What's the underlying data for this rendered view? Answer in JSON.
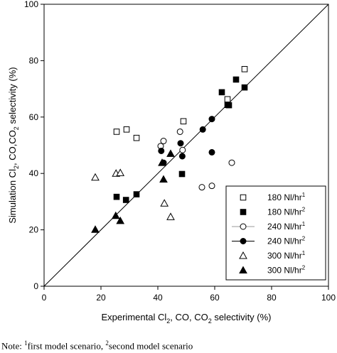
{
  "chart_data": {
    "type": "scatter",
    "xlim": [
      0,
      100
    ],
    "ylim": [
      0,
      100
    ],
    "xticks": [
      0,
      20,
      40,
      60,
      80,
      100
    ],
    "yticks": [
      0,
      20,
      40,
      60,
      80,
      100
    ],
    "xlabel": {
      "prefix": "Experimental Cl",
      "sub1": "2",
      "mid": ", CO, CO",
      "sub2": "2",
      "suffix": " selectivity (%)"
    },
    "ylabel": {
      "prefix": "Simulation Cl",
      "sub1": "2",
      "mid": ", CO,CO",
      "sub2": "2",
      "suffix": " selectivity (%)"
    },
    "parity_line": {
      "from": [
        0,
        0
      ],
      "to": [
        100,
        100
      ]
    },
    "legend_placement": "lower-right",
    "series": [
      {
        "name": "180 Nl/hr",
        "sup": "1",
        "marker": "square",
        "filled": false,
        "points": [
          [
            25.5,
            54.8
          ],
          [
            29,
            55.6
          ],
          [
            32.5,
            52.6
          ],
          [
            49,
            58.5
          ],
          [
            64.5,
            66.3
          ],
          [
            70.5,
            77
          ]
        ]
      },
      {
        "name": "180 Nl/hr",
        "sup": "2",
        "marker": "square",
        "filled": true,
        "points": [
          [
            25.5,
            31.7
          ],
          [
            28.8,
            30.6
          ],
          [
            32.5,
            32.6
          ],
          [
            48.5,
            39.8
          ],
          [
            62.5,
            68.8
          ],
          [
            64.5,
            64.3
          ],
          [
            65,
            64.2
          ],
          [
            67.5,
            73.3
          ],
          [
            70.5,
            70.5
          ]
        ]
      },
      {
        "name": "240 Nl/hr",
        "sup": "1",
        "marker": "circle",
        "filled": false,
        "points": [
          [
            41,
            49.7
          ],
          [
            42,
            51.5
          ],
          [
            47.8,
            54.8
          ],
          [
            48.7,
            48.3
          ],
          [
            55.5,
            35.1
          ],
          [
            59,
            35.6
          ],
          [
            66,
            43.8
          ]
        ]
      },
      {
        "name": "240 Nl/hr",
        "sup": "2",
        "marker": "circle",
        "filled": true,
        "points": [
          [
            41.2,
            48
          ],
          [
            42,
            43.8
          ],
          [
            48,
            50.7
          ],
          [
            48.6,
            46.1
          ],
          [
            55.8,
            55.6
          ],
          [
            59,
            59.3
          ],
          [
            59,
            47.5
          ]
        ]
      },
      {
        "name": "300 Nl/hr",
        "sup": "1",
        "marker": "triangle",
        "filled": false,
        "points": [
          [
            18,
            38.6
          ],
          [
            25.3,
            40
          ],
          [
            26.8,
            40.2
          ],
          [
            42.3,
            29.4
          ],
          [
            44.5,
            24.6
          ]
        ]
      },
      {
        "name": "300 Nl/hr",
        "sup": "2",
        "marker": "triangle",
        "filled": true,
        "points": [
          [
            18,
            20.1
          ],
          [
            25.2,
            25
          ],
          [
            26.8,
            23.2
          ],
          [
            41.5,
            43.8
          ],
          [
            42,
            37.9
          ],
          [
            44.5,
            47
          ]
        ]
      }
    ]
  },
  "note": {
    "prefix": "Note: ",
    "sup1": "1",
    "text1": "first model scenario, ",
    "sup2": "2",
    "text2": "second model scenario"
  }
}
